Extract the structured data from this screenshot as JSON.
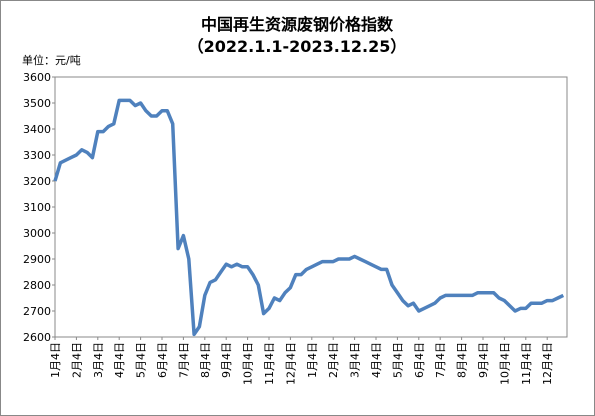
{
  "chart_data": {
    "type": "line",
    "title": "中国再生资源废钢价格指数",
    "subtitle": "（2022.1.1-2023.12.25）",
    "y_label": "单位：元/吨",
    "categories": [
      "1月4日",
      null,
      null,
      null,
      "2月4日",
      null,
      null,
      null,
      "3月4日",
      null,
      null,
      null,
      "4月4日",
      null,
      null,
      null,
      "5月4日",
      null,
      null,
      null,
      "6月4日",
      null,
      null,
      null,
      "7月4日",
      null,
      null,
      null,
      "8月4日",
      null,
      null,
      null,
      "9月4日",
      null,
      null,
      null,
      "10月4日",
      null,
      null,
      null,
      "11月4日",
      null,
      null,
      null,
      "12月4日",
      null,
      null,
      null,
      "1月4日",
      null,
      null,
      null,
      "2月4日",
      null,
      null,
      null,
      "3月4日",
      null,
      null,
      null,
      "4月4日",
      null,
      null,
      null,
      "5月4日",
      null,
      null,
      null,
      "6月4日",
      null,
      null,
      null,
      "7月4日",
      null,
      null,
      null,
      "8月4日",
      null,
      null,
      null,
      "9月4日",
      null,
      null,
      null,
      "10月4日",
      null,
      null,
      null,
      "11月4日",
      null,
      null,
      null,
      "12月4日",
      null,
      null,
      null
    ],
    "values": [
      3200,
      3270,
      3280,
      3290,
      3300,
      3320,
      3310,
      3290,
      3390,
      3390,
      3410,
      3420,
      3510,
      3510,
      3510,
      3490,
      3500,
      3470,
      3450,
      3450,
      3470,
      3470,
      3420,
      2940,
      2990,
      2900,
      2610,
      2640,
      2760,
      2810,
      2820,
      2850,
      2880,
      2870,
      2880,
      2870,
      2870,
      2840,
      2800,
      2690,
      2710,
      2750,
      2740,
      2770,
      2790,
      2840,
      2840,
      2860,
      2870,
      2880,
      2890,
      2890,
      2890,
      2900,
      2900,
      2900,
      2910,
      2900,
      2890,
      2880,
      2870,
      2860,
      2860,
      2800,
      2770,
      2740,
      2720,
      2730,
      2700,
      2710,
      2720,
      2730,
      2750,
      2760,
      2760,
      2760,
      2760,
      2760,
      2760,
      2770,
      2770,
      2770,
      2770,
      2750,
      2740,
      2720,
      2700,
      2710,
      2710,
      2730,
      2730,
      2730,
      2740,
      2740,
      2750,
      2760
    ],
    "color": "#4f81bd",
    "ylim": [
      2600,
      3600
    ],
    "yticks": [
      2600,
      2700,
      2800,
      2900,
      3000,
      3100,
      3200,
      3300,
      3400,
      3500,
      3600
    ],
    "grid": false
  }
}
